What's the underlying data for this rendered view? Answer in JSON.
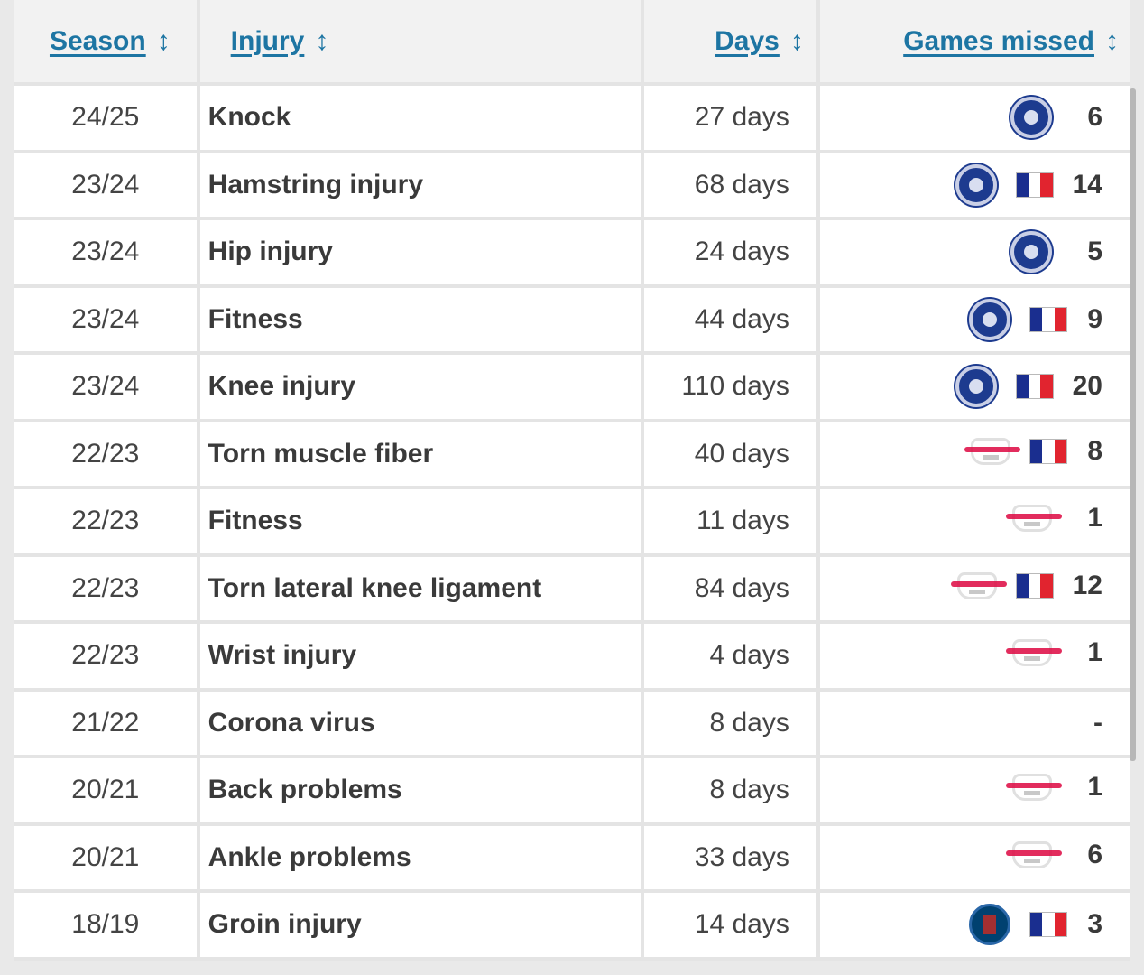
{
  "table": {
    "headers": {
      "season": "Season",
      "injury": "Injury",
      "days": "Days",
      "games": "Games missed",
      "sort_icon": "↕"
    },
    "rows": [
      {
        "season": "24/25",
        "injury": "Knock",
        "days": "27 days",
        "clubs": [
          "chelsea"
        ],
        "france": false,
        "games": "6"
      },
      {
        "season": "23/24",
        "injury": "Hamstring injury",
        "days": "68 days",
        "clubs": [
          "chelsea"
        ],
        "france": true,
        "games": "14"
      },
      {
        "season": "23/24",
        "injury": "Hip injury",
        "days": "24 days",
        "clubs": [
          "chelsea"
        ],
        "france": false,
        "games": "5"
      },
      {
        "season": "23/24",
        "injury": "Fitness",
        "days": "44 days",
        "clubs": [
          "chelsea"
        ],
        "france": true,
        "games": "9"
      },
      {
        "season": "23/24",
        "injury": "Knee injury",
        "days": "110 days",
        "clubs": [
          "chelsea"
        ],
        "france": true,
        "games": "20"
      },
      {
        "season": "22/23",
        "injury": "Torn muscle fiber",
        "days": "40 days",
        "clubs": [
          "leipzig"
        ],
        "france": true,
        "games": "8"
      },
      {
        "season": "22/23",
        "injury": "Fitness",
        "days": "11 days",
        "clubs": [
          "leipzig"
        ],
        "france": false,
        "games": "1"
      },
      {
        "season": "22/23",
        "injury": "Torn lateral knee ligament",
        "days": "84 days",
        "clubs": [
          "leipzig"
        ],
        "france": true,
        "games": "12"
      },
      {
        "season": "22/23",
        "injury": "Wrist injury",
        "days": "4 days",
        "clubs": [
          "leipzig"
        ],
        "france": false,
        "games": "1"
      },
      {
        "season": "21/22",
        "injury": "Corona virus",
        "days": "8 days",
        "clubs": [],
        "france": false,
        "games": "-"
      },
      {
        "season": "20/21",
        "injury": "Back problems",
        "days": "8 days",
        "clubs": [
          "leipzig"
        ],
        "france": false,
        "games": "1"
      },
      {
        "season": "20/21",
        "injury": "Ankle problems",
        "days": "33 days",
        "clubs": [
          "leipzig"
        ],
        "france": false,
        "games": "6"
      },
      {
        "season": "18/19",
        "injury": "Groin injury",
        "days": "14 days",
        "clubs": [
          "psg"
        ],
        "france": true,
        "games": "3"
      }
    ]
  },
  "icons": {
    "chelsea": "chelsea-crest-icon",
    "leipzig": "rb-leipzig-crest-icon",
    "psg": "psg-crest-icon",
    "france": "france-flag-icon",
    "sort": "sort-arrows-icon"
  },
  "colors": {
    "header_link": "#1d75a3",
    "text": "#333333",
    "grid": "#e4e4e4",
    "header_bg": "#f2f2f2",
    "row_bg": "#ffffff"
  }
}
